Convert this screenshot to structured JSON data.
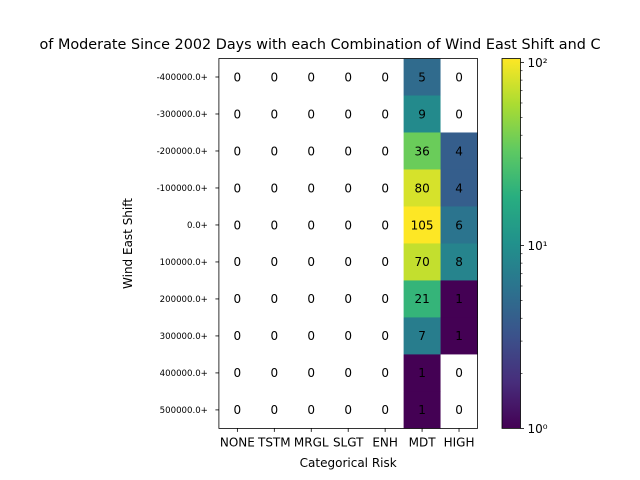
{
  "chart_data": {
    "type": "heatmap",
    "title": "of Moderate Since 2002 Days with each Combination of Wind East Shift and C",
    "xlabel": "Categorical Risk",
    "ylabel": "Wind East Shift",
    "x_categories": [
      "NONE",
      "TSTM",
      "MRGL",
      "SLGT",
      "ENH",
      "MDT",
      "HIGH"
    ],
    "y_categories": [
      "-400000.0+",
      "-300000.0+",
      "-200000.0+",
      "-100000.0+",
      "0.0+",
      "100000.0+",
      "200000.0+",
      "300000.0+",
      "400000.0+",
      "500000.0+"
    ],
    "values": [
      [
        0,
        0,
        0,
        0,
        0,
        5,
        0
      ],
      [
        0,
        0,
        0,
        0,
        0,
        9,
        0
      ],
      [
        0,
        0,
        0,
        0,
        0,
        36,
        4
      ],
      [
        0,
        0,
        0,
        0,
        0,
        80,
        4
      ],
      [
        0,
        0,
        0,
        0,
        0,
        105,
        6
      ],
      [
        0,
        0,
        0,
        0,
        0,
        70,
        8
      ],
      [
        0,
        0,
        0,
        0,
        0,
        21,
        1
      ],
      [
        0,
        0,
        0,
        0,
        0,
        7,
        1
      ],
      [
        0,
        0,
        0,
        0,
        0,
        1,
        0
      ],
      [
        0,
        0,
        0,
        0,
        0,
        1,
        0
      ]
    ],
    "colorscale": "viridis",
    "color_scale_type": "log",
    "color_range": [
      1,
      105
    ],
    "zero_cells_color": "#ffffff",
    "colorbar": {
      "ticks": [
        {
          "value": 1,
          "label": "10⁰"
        },
        {
          "value": 10,
          "label": "10¹"
        },
        {
          "value": 100,
          "label": "10²"
        }
      ]
    }
  }
}
